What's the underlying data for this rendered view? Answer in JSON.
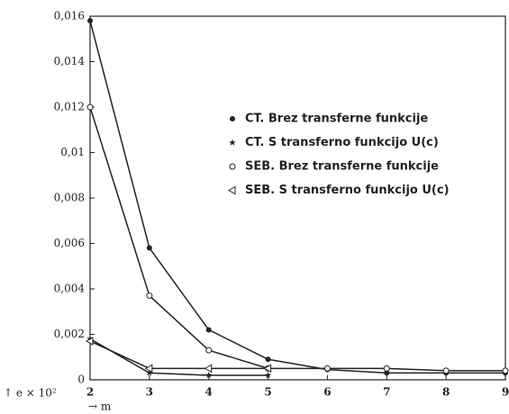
{
  "chart_data": {
    "type": "line",
    "x_label": "→ m",
    "y_label": "↑ e × 10²",
    "x": [
      2,
      3,
      4,
      5,
      6,
      7,
      8,
      9
    ],
    "xlim": [
      2,
      9
    ],
    "xticks": [
      2,
      3,
      4,
      5,
      6,
      7,
      8,
      9
    ],
    "ylim": [
      0,
      0.016
    ],
    "yticks": [
      0,
      {
        "value": 0.002,
        "label": "0,002"
      },
      {
        "value": 0.004,
        "label": "0,004"
      },
      {
        "value": 0.006,
        "label": "0,006"
      },
      {
        "value": 0.008,
        "label": "0,008"
      },
      {
        "value": 0.01,
        "label": "0,01"
      },
      {
        "value": 0.012,
        "label": "0,012"
      },
      {
        "value": 0.014,
        "label": "0,014"
      },
      {
        "value": 0.016,
        "label": "0,016"
      }
    ],
    "grid": false,
    "legend": "upper right",
    "series": [
      {
        "name": "CT. Brez transferne funkcije",
        "color": "#222222",
        "marker": "filled-circle",
        "values": [
          0.0158,
          0.0058,
          0.0022,
          0.0009,
          0.00045,
          0.0003,
          0.0003,
          0.0003
        ]
      },
      {
        "name": "CT. S transferno funkcijo U(c)",
        "color": "#222222",
        "marker": "star",
        "values": [
          0.0018,
          0.0003,
          0.0002,
          0.0002,
          null,
          null,
          null,
          null
        ]
      },
      {
        "name": "SEB. Brez transferne funkcije",
        "color": "#222222",
        "marker": "open-circle",
        "values": [
          0.012,
          0.0037,
          0.0013,
          0.0005,
          0.0005,
          0.0005,
          0.0004,
          0.0004
        ]
      },
      {
        "name": "SEB. S transferno funkcijo U(c)",
        "color": "#222222",
        "marker": "triangle",
        "values": [
          0.0017,
          0.0005,
          0.0005,
          0.0005,
          null,
          null,
          null,
          null
        ]
      }
    ]
  }
}
